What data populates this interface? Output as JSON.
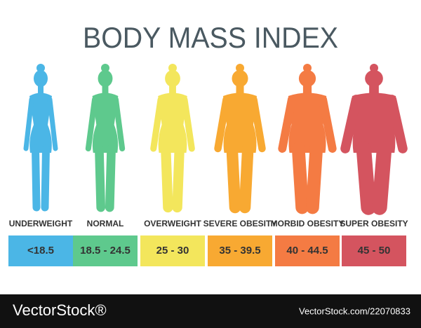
{
  "header": {
    "title": "BODY MASS INDEX"
  },
  "categories": [
    {
      "label": "UNDERWEIGHT",
      "range": "<18.5",
      "color": "#4bb6e6"
    },
    {
      "label": "NORMAL",
      "range": "18.5 - 24.5",
      "color": "#5ec98d"
    },
    {
      "label": "OVERWEIGHT",
      "range": "25 - 30",
      "color": "#f3e65c"
    },
    {
      "label": "SEVERE OBESITY",
      "range": "35 - 39.5",
      "color": "#f8a932"
    },
    {
      "label": "MORBID OBESITY",
      "range": "40 - 44.5",
      "color": "#f47b43"
    },
    {
      "label": "SUPER OBESITY",
      "range": "45 - 50",
      "color": "#d4545f"
    }
  ],
  "footer": {
    "brand": "VectorStock®",
    "url": "VectorStock.com/22070833"
  }
}
